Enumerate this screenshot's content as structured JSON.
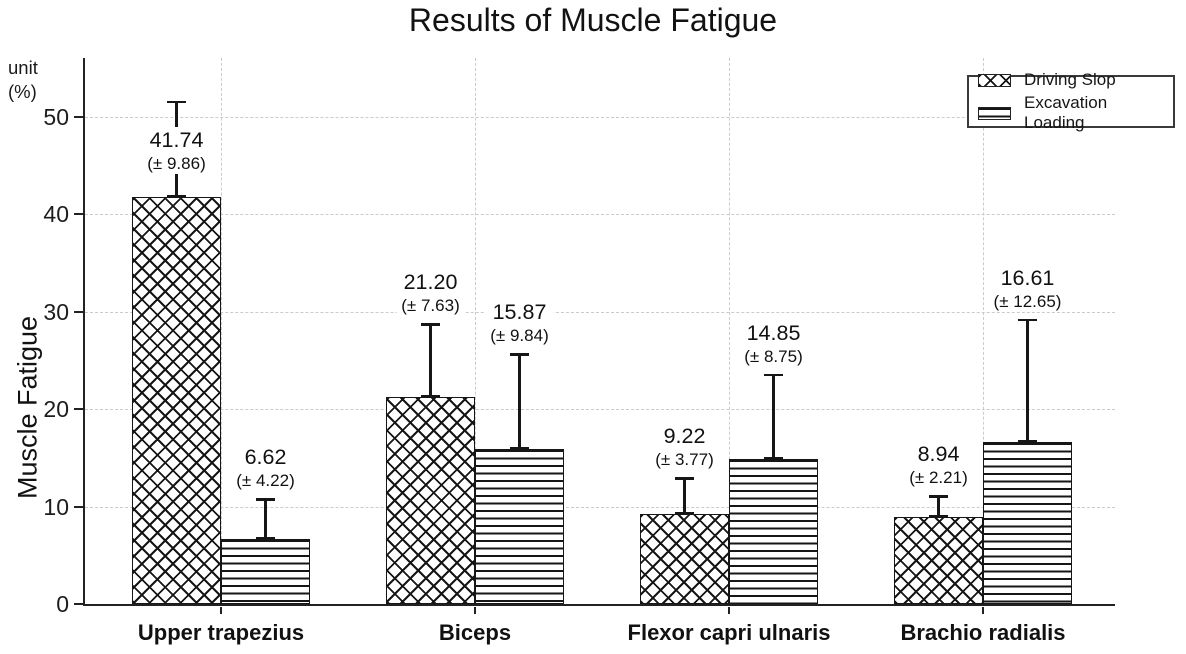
{
  "title": "Results of Muscle Fatigue",
  "y_axis": {
    "unit_line1": "unit",
    "unit_line2": "(%)",
    "axis_title": "Muscle Fatigue"
  },
  "chart_data": {
    "type": "bar",
    "title": "Results of Muscle Fatigue",
    "xlabel": "",
    "ylabel": "Muscle Fatigue",
    "unit": "%",
    "ylim": [
      0,
      56
    ],
    "yticks": [
      0,
      10,
      20,
      30,
      40,
      50
    ],
    "grid": "dashed horizontal and vertical",
    "legend_position": "top-right",
    "error_bars": "plus one standard deviation, capped",
    "categories": [
      "Upper trapezius",
      "Biceps",
      "Flexor capri ulnaris",
      "Brachio radialis"
    ],
    "series": [
      {
        "name": "Driving Slop",
        "pattern": "crosshatch",
        "values": [
          41.74,
          21.2,
          9.22,
          8.94
        ],
        "errors": [
          9.86,
          7.63,
          3.77,
          2.21
        ],
        "value_labels": [
          "41.74",
          "21.20",
          "9.22",
          "8.94"
        ],
        "error_labels": [
          "(± 9.86)",
          "(± 7.63)",
          "(± 3.77)",
          "(± 2.21)"
        ]
      },
      {
        "name": "Excavation Loading",
        "pattern": "horizontal-lines",
        "values": [
          6.62,
          15.87,
          14.85,
          16.61
        ],
        "errors": [
          4.22,
          9.84,
          8.75,
          12.65
        ],
        "value_labels": [
          "6.62",
          "15.87",
          "14.85",
          "16.61"
        ],
        "error_labels": [
          "(± 4.22)",
          "(± 9.84)",
          "(± 8.75)",
          "(± 12.65)"
        ]
      }
    ],
    "colors": {
      "ink": "#161616",
      "grid": "#cbcbcb",
      "background": "#ffffff"
    }
  }
}
